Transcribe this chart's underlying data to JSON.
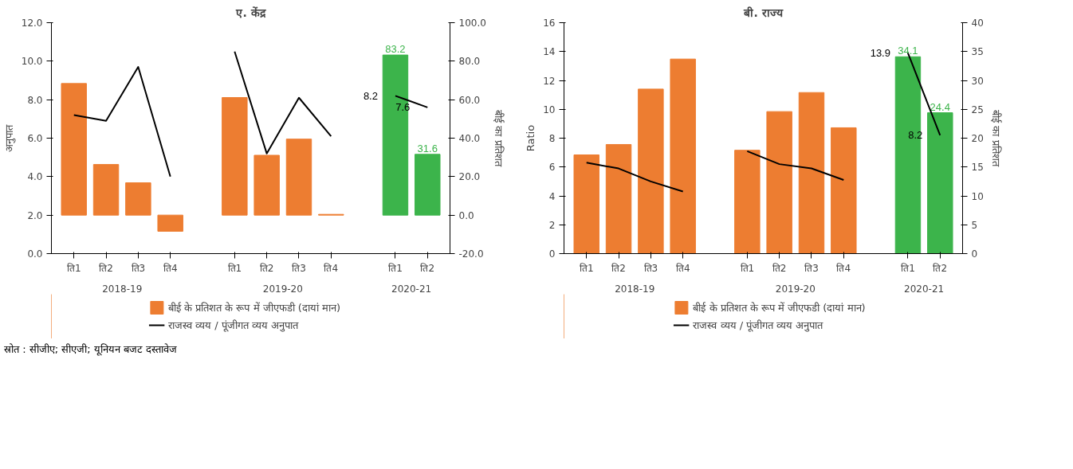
{
  "chart_data": [
    {
      "type": "bar",
      "title": "ए. केंद्र",
      "categories": [
        "ति1",
        "ति2",
        "ति3",
        "ति4",
        null,
        "ति1",
        "ति2",
        "ति3",
        "ति4",
        null,
        "ति1",
        "ति2"
      ],
      "ylabel": "अनुपात",
      "y2label": "बीई का प्रतिशत",
      "ylim": [
        0,
        12
      ],
      "yticks": [
        {
          "value": 0,
          "label": "0.0"
        },
        {
          "value": 2,
          "label": "2.0"
        },
        {
          "value": 4,
          "label": "4.0"
        },
        {
          "value": 6,
          "label": "6.0"
        },
        {
          "value": 8,
          "label": "8.0"
        },
        {
          "value": 10,
          "label": "10.0"
        },
        {
          "value": 12,
          "label": "12.0"
        }
      ],
      "y2lim": [
        -20,
        100
      ],
      "y2ticks": [
        {
          "value": -20,
          "label": "-20.0"
        },
        {
          "value": 0,
          "label": "0.0"
        },
        {
          "value": 20,
          "label": "20.0"
        },
        {
          "value": 40,
          "label": "40.0"
        },
        {
          "value": 60,
          "label": "60.0"
        },
        {
          "value": 80,
          "label": "80.0"
        },
        {
          "value": 100,
          "label": "100.0"
        }
      ],
      "legend": "bottom",
      "marker": "none",
      "annotations": [
        "2018-19",
        "2019-20",
        "2020-21",
        "स्रोत : सीजीए; सीएजी; यूनियन बजट दस्तावेज"
      ],
      "series": [
        {
          "name": "बीई के प्रतिशत के रूप में जीएफडी (दायां मान)",
          "type": "bar",
          "axis": "y2",
          "colors": [
            "#ed7d31",
            "#ed7d31",
            "#ed7d31",
            "#ed7d31",
            null,
            "#ed7d31",
            "#ed7d31",
            "#ed7d31",
            "#ed7d31",
            null,
            "#3cb44b",
            "#3cb44b"
          ],
          "values": [
            68.4,
            26.3,
            16.8,
            -8.4,
            null,
            61.1,
            31.1,
            39.5,
            0.4,
            null,
            83.2,
            31.6
          ],
          "value_labels": [
            null,
            null,
            null,
            null,
            null,
            null,
            null,
            null,
            null,
            null,
            "83.2",
            "31.6"
          ]
        },
        {
          "name": "राजस्व व्यय / पूंजीगत व्यय अनुपात",
          "type": "line",
          "color": "#000000",
          "values": [
            7.2,
            6.9,
            9.7,
            4.0,
            null,
            10.5,
            5.2,
            8.1,
            6.1,
            null,
            8.2,
            7.6
          ],
          "value_labels": [
            null,
            null,
            null,
            null,
            null,
            null,
            null,
            null,
            null,
            null,
            "8.2",
            "7.6"
          ]
        }
      ]
    },
    {
      "type": "bar",
      "title": "बी. राज्य",
      "categories": [
        "ति1",
        "ति2",
        "ति3",
        "ति4",
        null,
        "ति1",
        "ति2",
        "ति3",
        "ति4",
        null,
        "ति1",
        "ति2"
      ],
      "ylabel": "Ratio",
      "y2label": "बीई का प्रतिशत",
      "ylim": [
        0,
        16
      ],
      "yticks": [
        0,
        2,
        4,
        6,
        8,
        10,
        12,
        14,
        16
      ],
      "y2lim": [
        0,
        40
      ],
      "y2ticks": [
        0,
        5,
        10,
        15,
        20,
        25,
        30,
        35,
        40
      ],
      "legend": "bottom",
      "marker": "none",
      "annotations": [
        "2018-19",
        "2019-20",
        "2020-21"
      ],
      "series": [
        {
          "name": "बीई के प्रतिशत के रूप में जीएफडी (दायां मान)",
          "type": "bar",
          "axis": "y2",
          "colors": [
            "#ed7d31",
            "#ed7d31",
            "#ed7d31",
            "#ed7d31",
            null,
            "#ed7d31",
            "#ed7d31",
            "#ed7d31",
            "#ed7d31",
            null,
            "#3cb44b",
            "#3cb44b"
          ],
          "values": [
            17.1,
            18.9,
            28.5,
            33.7,
            null,
            17.9,
            24.6,
            27.9,
            21.8,
            null,
            34.1,
            24.4
          ],
          "value_labels": [
            null,
            null,
            null,
            null,
            null,
            null,
            null,
            null,
            null,
            null,
            "34.1",
            "24.4"
          ]
        },
        {
          "name": "राजस्व व्यय / पूंजीगत व्यय अनुपात",
          "type": "line",
          "color": "#000000",
          "values": [
            6.3,
            5.9,
            5.0,
            4.3,
            null,
            7.1,
            6.2,
            5.9,
            5.1,
            null,
            13.9,
            8.2
          ],
          "value_labels": [
            null,
            null,
            null,
            null,
            null,
            null,
            null,
            null,
            null,
            null,
            "13.9",
            "8.2"
          ]
        }
      ]
    }
  ]
}
